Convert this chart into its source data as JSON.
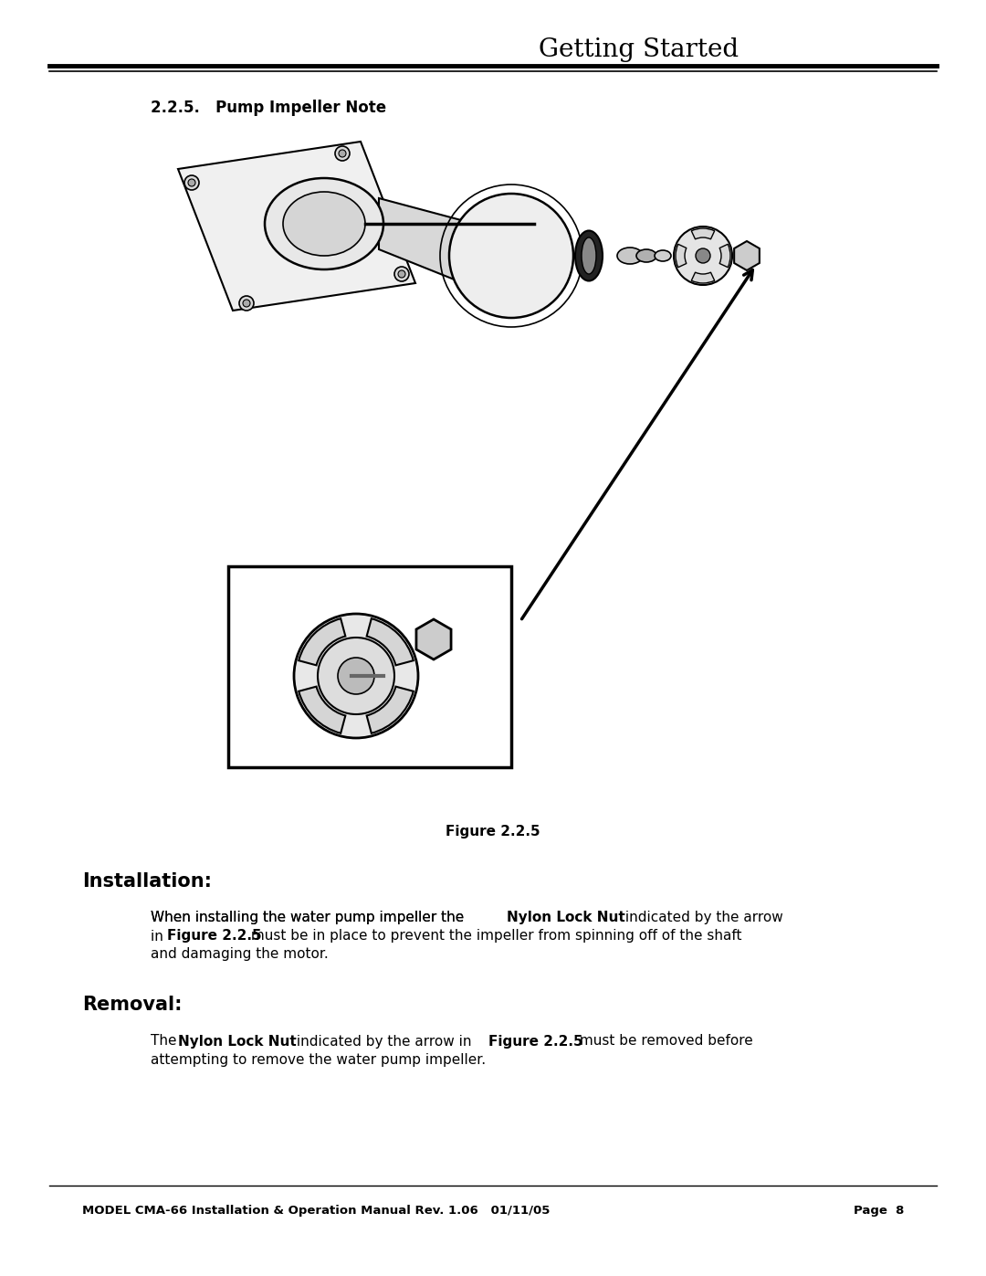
{
  "title": "Getting Started",
  "section_title": "2.2.5.   Pump Impeller Note",
  "figure_label": "Figure 2.2.5",
  "installation_heading": "Installation:",
  "installation_text_1_plain": "When installing the water pump impeller the ",
  "installation_text_1_bold": "Nylon Lock Nut",
  "installation_text_1_rest": " indicated by the arrow\nin ",
  "installation_text_1_bold2": "Figure 2.2.5",
  "installation_text_1_end": " must be in place to prevent the impeller from spinning off of the shaft\nand damaging the motor.",
  "removal_heading": "Removal:",
  "removal_text_plain": "The ",
  "removal_text_bold": "Nylon Lock Nut",
  "removal_text_rest": " indicated by the arrow in ",
  "removal_text_bold2": "Figure 2.2.5",
  "removal_text_end": " must be removed before\nattempting to remove the water pump impeller.",
  "footer_left": "MODEL CMA-66 Installation & Operation Manual Rev. 1.06   01/11/05",
  "footer_right": "Page  8",
  "bg_color": "#ffffff",
  "text_color": "#000000",
  "title_fontsize": 18,
  "section_fontsize": 12,
  "body_fontsize": 11,
  "footer_fontsize": 10
}
